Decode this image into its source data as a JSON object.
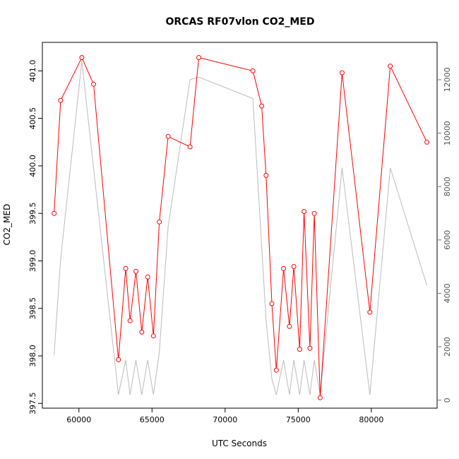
{
  "chart_data": {
    "type": "line",
    "title": "ORCAS RF07vlon CO2_MED",
    "xlabel": "UTC Seconds",
    "ylabel": "CO2_MED",
    "xlim": [
      57500,
      84500
    ],
    "ylim": [
      397.45,
      401.3
    ],
    "y2lim": [
      -300,
      13400
    ],
    "x_ticks": [
      60000,
      65000,
      70000,
      75000,
      80000
    ],
    "y_ticks": [
      397.5,
      398.0,
      398.5,
      399.0,
      399.5,
      400.0,
      400.5,
      401.0
    ],
    "y_tick_labels": [
      "397.5",
      "398.0",
      "398.5",
      "399.0",
      "399.5",
      "400.0",
      "400.5",
      "401.0"
    ],
    "y2_ticks": [
      0,
      2000,
      4000,
      6000,
      8000,
      10000,
      12000
    ],
    "series": [
      {
        "role": "primary",
        "color": "#ff0000",
        "x": [
          58300,
          58750,
          60200,
          61000,
          62700,
          63200,
          63500,
          63900,
          64300,
          64700,
          65100,
          65500,
          66100,
          67600,
          68200,
          71900,
          72500,
          72800,
          73200,
          73500,
          74000,
          74400,
          74700,
          75100,
          75400,
          75800,
          76100,
          76500,
          78000,
          79900,
          81300,
          83800
        ],
        "y": [
          399.5,
          400.69,
          401.14,
          400.86,
          397.96,
          398.92,
          398.37,
          398.89,
          398.25,
          398.83,
          398.21,
          399.41,
          400.31,
          400.2,
          401.14,
          401.0,
          400.63,
          399.9,
          398.55,
          397.85,
          398.92,
          398.31,
          398.94,
          398.07,
          399.52,
          398.08,
          399.5,
          397.56,
          400.98,
          398.46,
          401.05,
          400.25
        ]
      },
      {
        "role": "secondary",
        "color": "#bbbbbb",
        "x": [
          58300,
          58750,
          60200,
          62700,
          63200,
          63500,
          63900,
          64300,
          64700,
          65100,
          65500,
          66100,
          67600,
          68200,
          71900,
          72800,
          73200,
          73500,
          74000,
          74400,
          74700,
          75100,
          75400,
          75800,
          76100,
          76500,
          78000,
          79900,
          81300,
          83800
        ],
        "y": [
          1700,
          5300,
          12700,
          200,
          1500,
          200,
          1500,
          200,
          1500,
          200,
          1800,
          6500,
          12000,
          12100,
          11300,
          3000,
          800,
          200,
          1500,
          200,
          1500,
          200,
          1500,
          200,
          1500,
          200,
          8700,
          200,
          8700,
          4300
        ]
      }
    ]
  }
}
